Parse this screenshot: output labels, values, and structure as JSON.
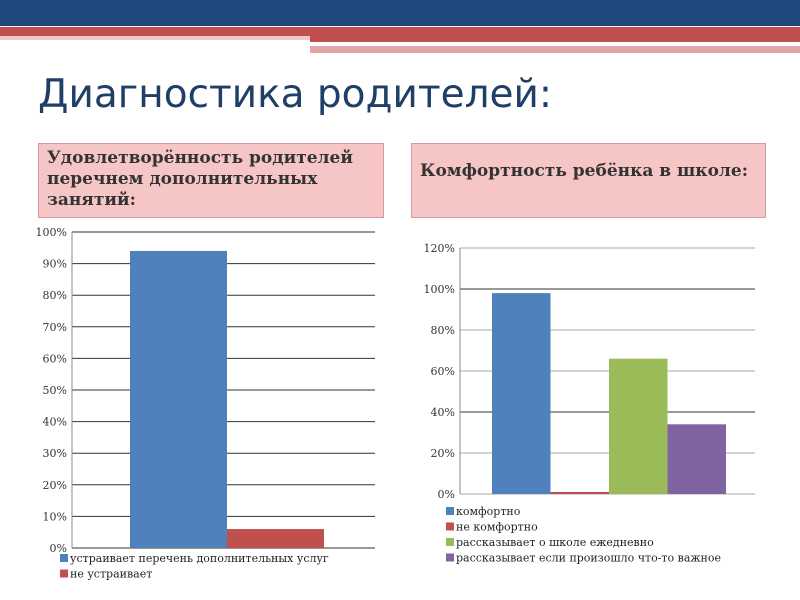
{
  "slide": {
    "title": "Диагностика родителей:"
  },
  "colors": {
    "blue": "#4f81bd",
    "red": "#c0504d",
    "green": "#9bbb59",
    "purple": "#8064a2",
    "header": "#1f497d"
  },
  "chart_data": [
    {
      "type": "bar",
      "title": "Удовлетворённость родителей перечнем дополнительных занятий:",
      "ylim": [
        0,
        100
      ],
      "yticks": [
        "0%",
        "10%",
        "20%",
        "30%",
        "40%",
        "50%",
        "60%",
        "70%",
        "80%",
        "90%",
        "100%"
      ],
      "series": [
        {
          "name": "устраивает перечень дополнительных услуг",
          "value": 94,
          "color": "#4f81bd"
        },
        {
          "name": "не устраивает",
          "value": 6,
          "color": "#c0504d"
        }
      ],
      "legend": "bottom"
    },
    {
      "type": "bar",
      "title": "Комфортность ребёнка в школе:",
      "ylim": [
        0,
        120
      ],
      "yticks": [
        "0%",
        "20%",
        "40%",
        "60%",
        "80%",
        "100%",
        "120%"
      ],
      "series": [
        {
          "name": "комфортно",
          "value": 98,
          "color": "#4f81bd"
        },
        {
          "name": "не комфортно",
          "value": 1,
          "color": "#c0504d"
        },
        {
          "name": "рассказывает о школе ежедневно",
          "value": 66,
          "color": "#9bbb59"
        },
        {
          "name": "рассказывает если произошло что-то важное",
          "value": 34,
          "color": "#8064a2"
        }
      ],
      "legend": "bottom"
    }
  ]
}
